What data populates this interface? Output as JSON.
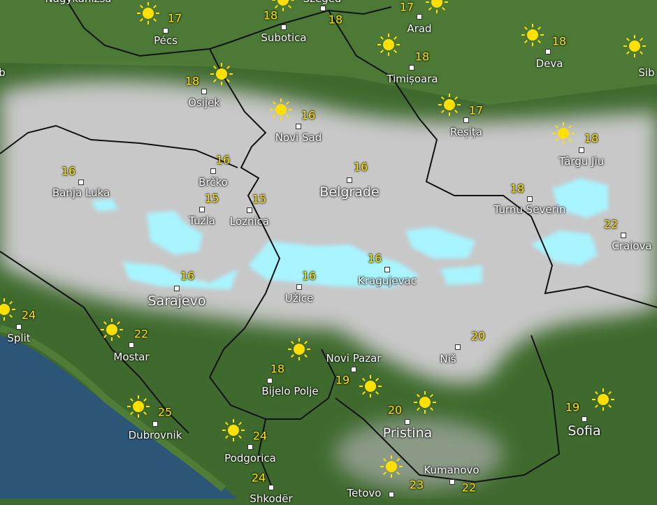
{
  "map": {
    "colors": {
      "land": "#3f6a2e",
      "cloud": "#c9c9c9",
      "rain": "#a8f4ff",
      "sea": "#2c5677",
      "sun": "#ffe000",
      "temperature": "#ffe500"
    }
  },
  "cities": [
    {
      "name": "Nagykanizsa"
    },
    {
      "name": "Pécs",
      "temp": "17"
    },
    {
      "name": "Subotica",
      "temp": "18"
    },
    {
      "name": "Szeged",
      "temp": "18"
    },
    {
      "name": "Arad",
      "temp": "17"
    },
    {
      "name": "Deva",
      "temp": "18"
    },
    {
      "name": "Sib"
    },
    {
      "name": "Timișoara",
      "temp": "18"
    },
    {
      "name": "Osijek",
      "temp": "18"
    },
    {
      "name": "Novi Sad",
      "temp": "16"
    },
    {
      "name": "Reșița",
      "temp": "17"
    },
    {
      "name": "Târgu Jiu",
      "temp": "18"
    },
    {
      "name": "Banja Luka",
      "temp": "16"
    },
    {
      "name": "Brčko",
      "temp": "16"
    },
    {
      "name": "Belgrade",
      "temp": "16"
    },
    {
      "name": "Turnu Severin",
      "temp": "18"
    },
    {
      "name": "Tuzla",
      "temp": "15"
    },
    {
      "name": "Loznica",
      "temp": "15"
    },
    {
      "name": "Craiova",
      "temp": "22"
    },
    {
      "name": "Kragujevac",
      "temp": "16"
    },
    {
      "name": "Sarajevo",
      "temp": "16"
    },
    {
      "name": "Užice",
      "temp": "16"
    },
    {
      "name": "Split",
      "temp": "24"
    },
    {
      "name": "Mostar",
      "temp": "22"
    },
    {
      "name": "Niš",
      "temp": "20"
    },
    {
      "name": "Novi Pazar",
      "temp": "19"
    },
    {
      "name": "Bijelo Polje",
      "temp": "18"
    },
    {
      "name": "Dubrovnik",
      "temp": "25"
    },
    {
      "name": "Pristina",
      "temp": "20"
    },
    {
      "name": "Sofia",
      "temp": "19"
    },
    {
      "name": "Podgorica",
      "temp": "24"
    },
    {
      "name": "Kumanovo",
      "temp": "22"
    },
    {
      "name": "Tetovo",
      "temp": "23"
    },
    {
      "name": "Shkodër",
      "temp": "24"
    },
    {
      "name": "b"
    }
  ]
}
